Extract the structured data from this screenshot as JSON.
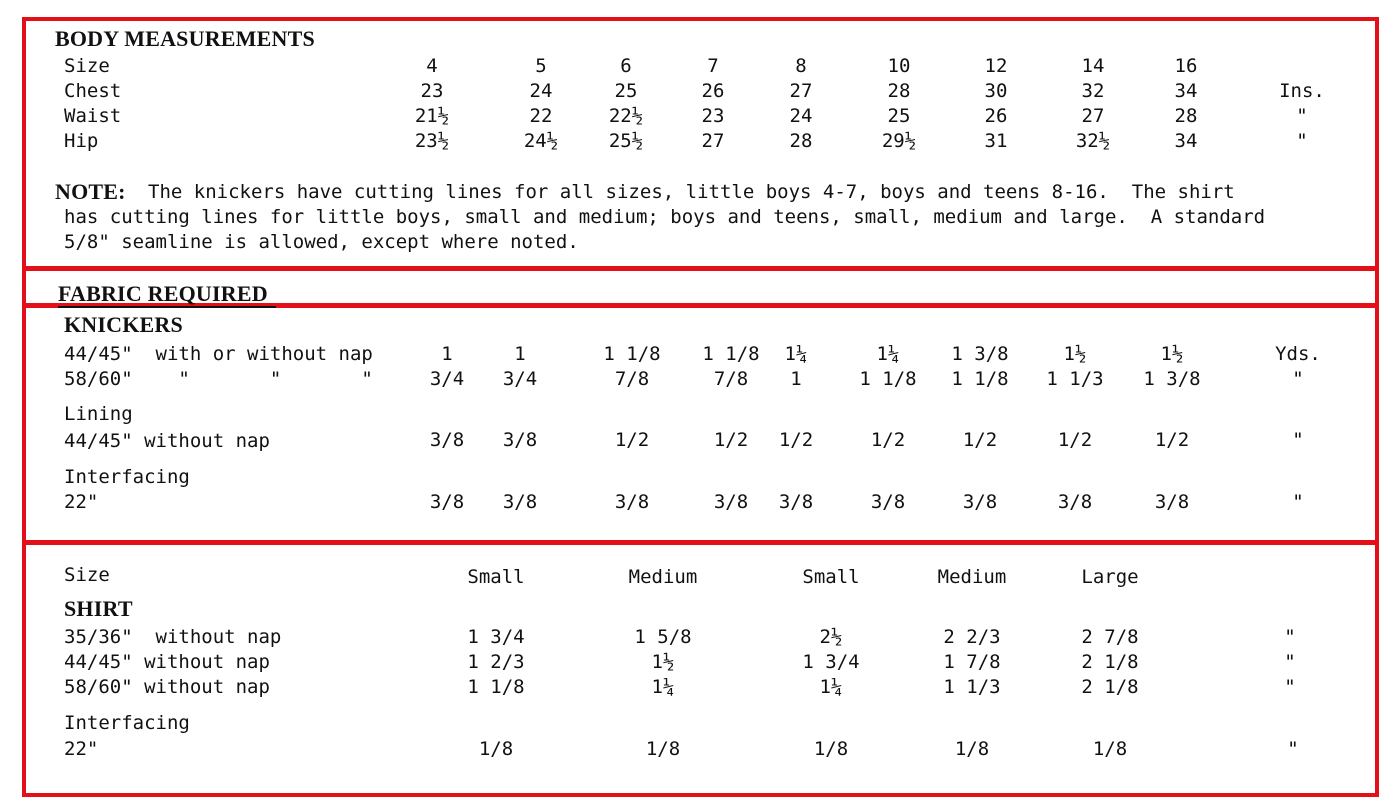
{
  "body_measurements": {
    "title": "BODY MEASUREMENTS",
    "rows": [
      {
        "label": "Size",
        "values": [
          "4",
          "5",
          "6",
          "7",
          "8",
          "10",
          "12",
          "14",
          "16"
        ],
        "unit": ""
      },
      {
        "label": "Chest",
        "values": [
          "23",
          "24",
          "25",
          "26",
          "27",
          "28",
          "30",
          "32",
          "34"
        ],
        "unit": "Ins."
      },
      {
        "label": "Waist",
        "values": [
          "21½",
          "22",
          "22½",
          "23",
          "24",
          "25",
          "26",
          "27",
          "28"
        ],
        "unit": "\""
      },
      {
        "label": "Hip",
        "values": [
          "23½",
          "24½",
          "25½",
          "27",
          "28",
          "29½",
          "31",
          "32½",
          "34"
        ],
        "unit": "\""
      }
    ],
    "note_label": "NOTE:",
    "note_lines": [
      "The knickers have cutting lines for all sizes, little boys 4-7, boys and teens 8-16.  The shirt",
      "has cutting lines for little boys, small and medium; boys and teens, small, medium and large.  A standard",
      "5/8\" seamline is allowed, except where noted."
    ]
  },
  "fabric_required": {
    "title": "FABRIC REQUIRED",
    "knickers": {
      "title": "KNICKERS",
      "rows": [
        {
          "label": "44/45\"  with or without nap",
          "values": [
            "1",
            "1",
            "1 1/8",
            "1 1/8",
            "1¼",
            "1¼",
            "1 3/8",
            "1½",
            "1½"
          ],
          "unit": "Yds."
        },
        {
          "label": "58/60\"    \"       \"       \"",
          "values": [
            "3/4",
            "3/4",
            "7/8",
            "7/8",
            "1",
            "1 1/8",
            "1 1/8",
            "1 1/3",
            "1 3/8"
          ],
          "unit": "\""
        }
      ],
      "lining": {
        "title": "Lining",
        "label": "44/45\" without nap",
        "values": [
          "3/8",
          "3/8",
          "1/2",
          "1/2",
          "1/2",
          "1/2",
          "1/2",
          "1/2",
          "1/2"
        ],
        "unit": "\""
      },
      "interfacing": {
        "title": "Interfacing",
        "label": "22\"",
        "values": [
          "3/8",
          "3/8",
          "3/8",
          "3/8",
          "3/8",
          "3/8",
          "3/8",
          "3/8",
          "3/8"
        ],
        "unit": "\""
      }
    }
  },
  "shirt": {
    "size_label": "Size",
    "sizes": [
      "Small",
      "Medium",
      "Small",
      "Medium",
      "Large"
    ],
    "title": "SHIRT",
    "rows": [
      {
        "label": "35/36\"  without nap",
        "values": [
          "1 3/4",
          "1 5/8",
          "2½",
          "2 2/3",
          "2 7/8"
        ],
        "unit": "\""
      },
      {
        "label": "44/45\" without nap",
        "values": [
          "1 2/3",
          "1½",
          "1 3/4",
          "1 7/8",
          "2 1/8"
        ],
        "unit": "\""
      },
      {
        "label": "58/60\" without nap",
        "values": [
          "1 1/8",
          "1¼",
          "1¼",
          "1 1/3",
          "2 1/8"
        ],
        "unit": "\""
      }
    ],
    "interfacing": {
      "title": "Interfacing",
      "label": "22\"",
      "values": [
        "1/8",
        "1/8",
        "1/8",
        "1/8",
        "1/8"
      ],
      "unit": "\""
    }
  },
  "colors": {
    "frame": "#e3101a",
    "text": "#111111"
  }
}
